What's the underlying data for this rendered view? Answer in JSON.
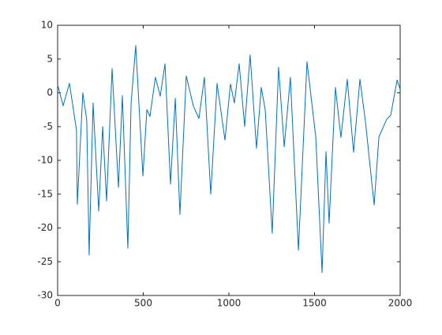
{
  "chart_data": {
    "type": "line",
    "x": [
      0,
      32,
      69,
      110,
      115,
      147,
      170,
      184,
      207,
      240,
      263,
      286,
      318,
      355,
      378,
      410,
      429,
      456,
      498,
      521,
      539,
      571,
      599,
      627,
      659,
      687,
      714,
      751,
      793,
      825,
      857,
      894,
      931,
      977,
      1009,
      1032,
      1060,
      1092,
      1124,
      1161,
      1189,
      1212,
      1253,
      1290,
      1323,
      1359,
      1406,
      1456,
      1507,
      1544,
      1567,
      1585,
      1622,
      1654,
      1691,
      1728,
      1765,
      1797,
      1848,
      1876,
      1922,
      1945,
      1982,
      2000
    ],
    "series": [
      {
        "color": "#0072bd",
        "values": [
          1.2,
          -1.9,
          1.4,
          -5.5,
          -16.5,
          0,
          -4,
          -24,
          -1.5,
          -17.5,
          -5,
          -16,
          3.6,
          -14,
          -0.4,
          -23,
          -1.5,
          7,
          -12.3,
          -2.5,
          -3.5,
          2.3,
          -0.5,
          4.3,
          -13.5,
          -0.8,
          -18,
          2.5,
          -2,
          -3.8,
          2.3,
          -15,
          1.4,
          -7,
          1.3,
          -1.5,
          4.3,
          -5,
          5.6,
          -8.2,
          0.8,
          -2.5,
          -20.8,
          3.8,
          -8,
          2.3,
          -23.3,
          4.6,
          -6.5,
          -26.6,
          -8.7,
          -19.3,
          0.8,
          -6.6,
          2,
          -8.8,
          2,
          -4.2,
          -16.6,
          -6.5,
          -3.9,
          -3.3,
          1.9,
          0.5
        ]
      }
    ],
    "xlim": [
      0,
      2000
    ],
    "xticks": [
      0,
      500,
      1000,
      1500,
      2000
    ],
    "ylim": [
      -30,
      10
    ],
    "yticks": [
      -30,
      -25,
      -20,
      -15,
      -10,
      -5,
      0,
      5,
      10
    ]
  }
}
